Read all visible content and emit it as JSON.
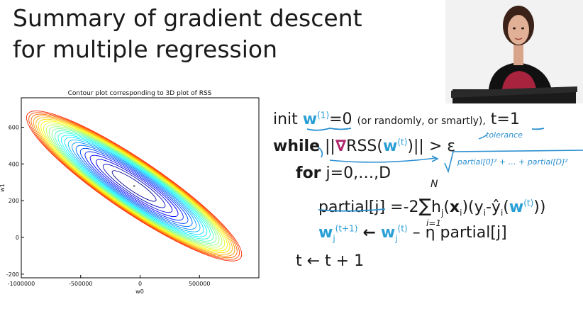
{
  "slide": {
    "title_line1": "Summary of gradient descent",
    "title_line2": "for multiple regression"
  },
  "colors": {
    "accent": "#2a9fd6",
    "ink": "#2a8fd0",
    "gradient_symbol": "#b0276b"
  },
  "chart_data": {
    "type": "contour",
    "title": "Contour plot corresponding to 3D plot of RSS",
    "xlabel": "w0",
    "ylabel": "w1",
    "xlim": [
      -1000000,
      1000000
    ],
    "ylim": [
      -220,
      760
    ],
    "x_ticks": [
      -1000000,
      -500000,
      0,
      500000
    ],
    "x_tick_labels": [
      "-1000000",
      "-500000",
      "0",
      "500000"
    ],
    "y_ticks": [
      -200,
      0,
      200,
      400,
      600
    ],
    "y_tick_labels": [
      "-200",
      "0",
      "200",
      "400",
      "600"
    ],
    "minimum": [
      -50000,
      280
    ],
    "colormap": "jet",
    "grid": false
  },
  "algorithm": {
    "init_word": "init",
    "w": "w",
    "sup_1": "(1)",
    "eq_zero": "=0",
    "init_note": "(or randomly, or smartly),",
    "t_init": "t=1",
    "while_word": "while",
    "norm_open": "||",
    "nabla": "∇",
    "rss_open": "RSS(",
    "sup_t": "(t)",
    "rss_close": ")||",
    "gt_eps": "> ε",
    "for_word": "for",
    "for_range": "j=0,…,D",
    "partial_j": "partial[j]",
    "eq_m2": "=-2",
    "sum": "∑",
    "sum_top": "N",
    "sum_bottom": "i=1",
    "h": "h",
    "sub_j": "j",
    "paren_open": "(",
    "x": "x",
    "sub_i": "i",
    "y_open": ")(y",
    "minus_yhat": "-ŷ",
    "paren_w_open": "(",
    "close_two": "))",
    "sup_t1": "(t+1)",
    "arrow": "←",
    "minus_eta": "– η partial[j]",
    "t_update": "t ← t + 1"
  },
  "annotations": {
    "tolerance": "tolerance",
    "sqrt_expr": "partial[0]² + … + partial[D]²"
  }
}
